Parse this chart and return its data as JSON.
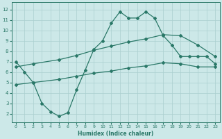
{
  "line1_x": [
    0,
    1,
    2,
    3,
    4,
    5,
    6,
    7,
    8,
    9,
    10,
    11,
    12,
    13,
    14,
    15,
    16,
    17,
    18,
    19,
    20,
    21,
    22,
    23
  ],
  "line1_y": [
    7.0,
    6.0,
    5.0,
    3.0,
    2.2,
    1.75,
    2.1,
    4.3,
    6.2,
    8.2,
    9.0,
    10.7,
    11.8,
    11.2,
    11.2,
    11.8,
    11.2,
    9.5,
    8.6,
    7.5,
    7.5,
    7.5,
    7.5,
    6.8
  ],
  "line2_x": [
    0,
    2,
    5,
    7,
    9,
    11,
    13,
    15,
    17,
    19,
    21,
    23
  ],
  "line2_y": [
    6.5,
    6.8,
    7.2,
    7.6,
    8.1,
    8.5,
    8.9,
    9.2,
    9.6,
    9.5,
    8.6,
    7.5
  ],
  "line3_x": [
    0,
    2,
    5,
    7,
    9,
    11,
    13,
    15,
    17,
    19,
    21,
    23
  ],
  "line3_y": [
    4.8,
    5.0,
    5.3,
    5.6,
    5.9,
    6.1,
    6.4,
    6.6,
    6.9,
    6.8,
    6.5,
    6.5
  ],
  "xlim": [
    -0.5,
    23.5
  ],
  "ylim": [
    1.2,
    12.7
  ],
  "yticks": [
    2,
    3,
    4,
    5,
    6,
    7,
    8,
    9,
    10,
    11,
    12
  ],
  "xticks": [
    0,
    1,
    2,
    3,
    4,
    5,
    6,
    7,
    8,
    9,
    10,
    11,
    12,
    13,
    14,
    15,
    16,
    17,
    18,
    19,
    20,
    21,
    22,
    23
  ],
  "xlabel": "Humidex (Indice chaleur)",
  "line_color": "#2a7868",
  "bg_color": "#cce8e8",
  "grid_color": "#aacfcf",
  "marker": "D",
  "markersize": 2.0,
  "linewidth": 0.9
}
